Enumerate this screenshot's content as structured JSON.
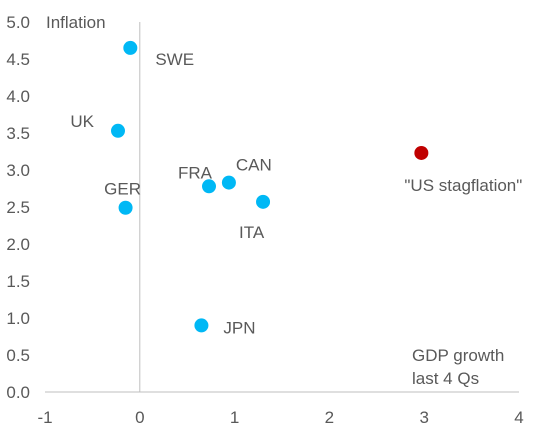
{
  "chart_data": {
    "type": "scatter",
    "title": "",
    "ylabel": "Inflation",
    "xlabel_lines": [
      "GDP growth",
      "last 4 Qs"
    ],
    "xlim": [
      -1,
      4
    ],
    "ylim": [
      0,
      5
    ],
    "x_ticks": [
      -1,
      0,
      1,
      2,
      3,
      4
    ],
    "y_ticks": [
      "0.0",
      "0.5",
      "1.0",
      "1.5",
      "2.0",
      "2.5",
      "3.0",
      "3.5",
      "4.0",
      "4.5",
      "5.0"
    ],
    "grid": false,
    "legend": "none",
    "colors": {
      "default_point": "#00B8F5",
      "highlight_point": "#C00000",
      "axis": "#BFBFBF",
      "text": "#595959",
      "highlight_text": "#C00000"
    },
    "points": [
      {
        "label": "SWE",
        "x": -0.1,
        "y": 4.65,
        "highlight": false
      },
      {
        "label": "UK",
        "x": -0.23,
        "y": 3.53,
        "highlight": false
      },
      {
        "label": "GER",
        "x": -0.15,
        "y": 2.49,
        "highlight": false
      },
      {
        "label": "FRA",
        "x": 0.73,
        "y": 2.78,
        "highlight": false
      },
      {
        "label": "CAN",
        "x": 0.94,
        "y": 2.83,
        "highlight": false
      },
      {
        "label": "ITA",
        "x": 1.3,
        "y": 2.57,
        "highlight": false
      },
      {
        "label": "JPN",
        "x": 0.65,
        "y": 0.9,
        "highlight": false
      },
      {
        "label": "\"US stagflation\"",
        "x": 2.97,
        "y": 3.23,
        "highlight": true
      }
    ]
  }
}
